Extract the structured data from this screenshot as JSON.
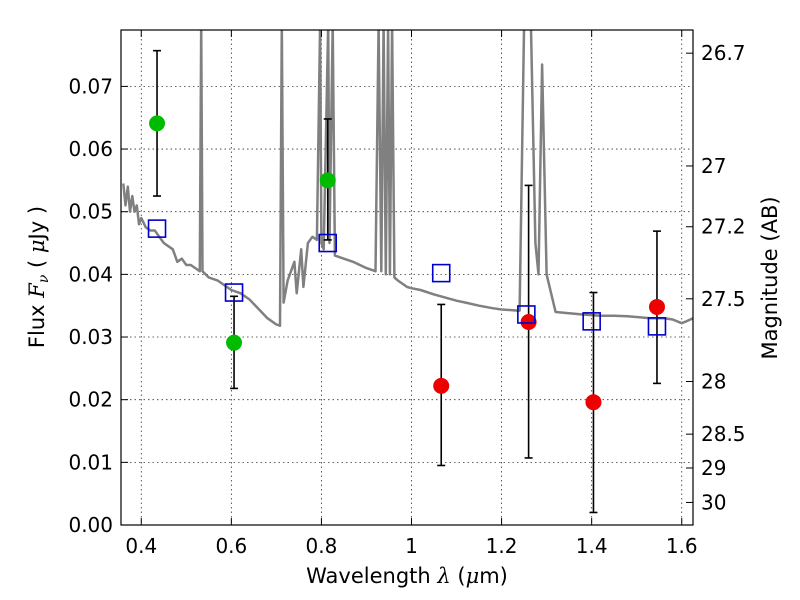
{
  "chart_data": {
    "type": "scatter",
    "xlabel": "Wavelength  λ (μm)",
    "ylabel": "Flux  Fν  ( μJy )",
    "y2label": "Magnitude (AB)",
    "xlim": [
      0.355,
      1.625
    ],
    "ylim": [
      0.0,
      0.079
    ],
    "x_ticks": [
      {
        "value": 0.4,
        "label": "0.4"
      },
      {
        "value": 0.6,
        "label": "0.6"
      },
      {
        "value": 0.8,
        "label": "0.8"
      },
      {
        "value": 1.0,
        "label": "1"
      },
      {
        "value": 1.2,
        "label": "1.2"
      },
      {
        "value": 1.4,
        "label": "1.4"
      },
      {
        "value": 1.6,
        "label": "1.6"
      }
    ],
    "y_ticks": [
      {
        "value": 0.0,
        "label": "0.00"
      },
      {
        "value": 0.01,
        "label": "0.01"
      },
      {
        "value": 0.02,
        "label": "0.02"
      },
      {
        "value": 0.03,
        "label": "0.03"
      },
      {
        "value": 0.04,
        "label": "0.04"
      },
      {
        "value": 0.05,
        "label": "0.05"
      },
      {
        "value": 0.06,
        "label": "0.06"
      },
      {
        "value": 0.07,
        "label": "0.07"
      }
    ],
    "y2_ticks": [
      {
        "flux": 0.0753,
        "label": "26.7"
      },
      {
        "flux": 0.0573,
        "label": "27"
      },
      {
        "flux": 0.0476,
        "label": "27.2"
      },
      {
        "flux": 0.0361,
        "label": "27.5"
      },
      {
        "flux": 0.0229,
        "label": "28"
      },
      {
        "flux": 0.0145,
        "label": "28.5"
      },
      {
        "flux": 0.0091,
        "label": "29"
      },
      {
        "flux": 0.0036,
        "label": "30"
      }
    ],
    "grid": true,
    "colors": {
      "model": "#808080",
      "optical": "#00bb00",
      "nir": "#ee0000",
      "model_phot": "#0000cc",
      "errorbar": "#000000"
    },
    "model_spectrum": [
      [
        0.36,
        0.0545
      ],
      [
        0.365,
        0.051
      ],
      [
        0.37,
        0.054
      ],
      [
        0.375,
        0.05
      ],
      [
        0.38,
        0.0525
      ],
      [
        0.385,
        0.05
      ],
      [
        0.39,
        0.051
      ],
      [
        0.395,
        0.048
      ],
      [
        0.4,
        0.049
      ],
      [
        0.41,
        0.0475
      ],
      [
        0.42,
        0.047
      ],
      [
        0.43,
        0.047
      ],
      [
        0.44,
        0.046
      ],
      [
        0.45,
        0.045
      ],
      [
        0.46,
        0.0445
      ],
      [
        0.47,
        0.044
      ],
      [
        0.48,
        0.042
      ],
      [
        0.49,
        0.0425
      ],
      [
        0.5,
        0.0415
      ],
      [
        0.51,
        0.0415
      ],
      [
        0.52,
        0.041
      ],
      [
        0.53,
        0.0405
      ],
      [
        0.533,
        0.08
      ],
      [
        0.536,
        0.0405
      ],
      [
        0.55,
        0.0395
      ],
      [
        0.57,
        0.039
      ],
      [
        0.6,
        0.0375
      ],
      [
        0.62,
        0.037
      ],
      [
        0.64,
        0.036
      ],
      [
        0.66,
        0.0345
      ],
      [
        0.68,
        0.033
      ],
      [
        0.7,
        0.032
      ],
      [
        0.708,
        0.0318
      ],
      [
        0.712,
        0.08
      ],
      [
        0.716,
        0.0355
      ],
      [
        0.725,
        0.039
      ],
      [
        0.74,
        0.042
      ],
      [
        0.745,
        0.037
      ],
      [
        0.755,
        0.044
      ],
      [
        0.76,
        0.038
      ],
      [
        0.77,
        0.045
      ],
      [
        0.78,
        0.046
      ],
      [
        0.79,
        0.0455
      ],
      [
        0.797,
        0.08
      ],
      [
        0.8,
        0.045
      ],
      [
        0.805,
        0.044
      ],
      [
        0.815,
        0.08
      ],
      [
        0.818,
        0.045
      ],
      [
        0.825,
        0.08
      ],
      [
        0.83,
        0.043
      ],
      [
        0.85,
        0.0425
      ],
      [
        0.87,
        0.042
      ],
      [
        0.9,
        0.041
      ],
      [
        0.92,
        0.0405
      ],
      [
        0.927,
        0.08
      ],
      [
        0.933,
        0.0405
      ],
      [
        0.938,
        0.08
      ],
      [
        0.943,
        0.04
      ],
      [
        0.948,
        0.08
      ],
      [
        0.952,
        0.04
      ],
      [
        0.957,
        0.08
      ],
      [
        0.962,
        0.0395
      ],
      [
        0.97,
        0.039
      ],
      [
        0.99,
        0.038
      ],
      [
        1.0,
        0.0378
      ],
      [
        1.02,
        0.0375
      ],
      [
        1.05,
        0.0368
      ],
      [
        1.08,
        0.0362
      ],
      [
        1.1,
        0.0358
      ],
      [
        1.12,
        0.0355
      ],
      [
        1.15,
        0.035
      ],
      [
        1.18,
        0.0346
      ],
      [
        1.2,
        0.0344
      ],
      [
        1.24,
        0.0342
      ],
      [
        1.25,
        0.08
      ],
      [
        1.265,
        0.08
      ],
      [
        1.275,
        0.045
      ],
      [
        1.282,
        0.04
      ],
      [
        1.29,
        0.0735
      ],
      [
        1.3,
        0.04
      ],
      [
        1.32,
        0.034
      ],
      [
        1.35,
        0.0338
      ],
      [
        1.38,
        0.0336
      ],
      [
        1.4,
        0.0335
      ],
      [
        1.42,
        0.0334
      ],
      [
        1.45,
        0.0334
      ],
      [
        1.48,
        0.0333
      ],
      [
        1.5,
        0.0332
      ],
      [
        1.53,
        0.033
      ],
      [
        1.56,
        0.033
      ],
      [
        1.58,
        0.0328
      ],
      [
        1.6,
        0.0322
      ],
      [
        1.61,
        0.0325
      ],
      [
        1.625,
        0.033
      ]
    ],
    "observed_optical": [
      {
        "x": 0.435,
        "y": 0.0641,
        "lo": 0.0525,
        "hi": 0.0757
      },
      {
        "x": 0.606,
        "y": 0.0291,
        "lo": 0.0218,
        "hi": 0.0365
      },
      {
        "x": 0.814,
        "y": 0.055,
        "lo": 0.0455,
        "hi": 0.0648
      }
    ],
    "observed_nir": [
      {
        "x": 1.066,
        "y": 0.0222,
        "lo": 0.0095,
        "hi": 0.0352
      },
      {
        "x": 1.26,
        "y": 0.0324,
        "lo": 0.0107,
        "hi": 0.0542
      },
      {
        "x": 1.404,
        "y": 0.0196,
        "lo": 0.002,
        "hi": 0.0371
      },
      {
        "x": 1.545,
        "y": 0.0348,
        "lo": 0.0226,
        "hi": 0.0469
      }
    ],
    "model_photometry": [
      {
        "x": 0.435,
        "y": 0.0473
      },
      {
        "x": 0.606,
        "y": 0.0371
      },
      {
        "x": 0.814,
        "y": 0.045
      },
      {
        "x": 1.066,
        "y": 0.0402
      },
      {
        "x": 1.255,
        "y": 0.0336
      },
      {
        "x": 1.4,
        "y": 0.0325
      },
      {
        "x": 1.545,
        "y": 0.0317
      }
    ]
  }
}
